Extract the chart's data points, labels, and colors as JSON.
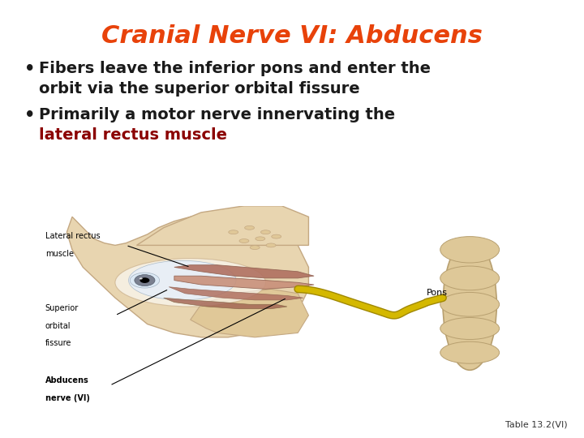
{
  "title": "Cranial Nerve VI: Abducens",
  "title_color": "#E8420A",
  "title_fontsize": 22,
  "bullet1_line1": "Fibers leave the inferior pons and enter the",
  "bullet1_line2": "orbit via the superior orbital fissure",
  "bullet2_line1": "Primarily a motor nerve innervating the",
  "bullet2_line2_colored": "lateral rectus muscle",
  "bullet_color": "#1A1A1A",
  "highlight_color": "#8B0000",
  "bullet_fontsize": 14,
  "caption": "Table 13.2(VI)",
  "caption_fontsize": 8,
  "background_color": "#FFFFFF",
  "skin_color": "#E8D5B0",
  "skin_edge": "#C4A882",
  "bone_color": "#E0C898",
  "muscle_color1": "#C8907A",
  "muscle_color2": "#B07060",
  "muscle_color3": "#A06050",
  "sclera_color": "#E8EEF5",
  "iris_color": "#7A8090",
  "nerve_color": "#D4B800",
  "nerve_edge": "#A08800",
  "pons_color": "#DEC898",
  "pons_edge": "#B8A070",
  "label_fontsize": 7
}
